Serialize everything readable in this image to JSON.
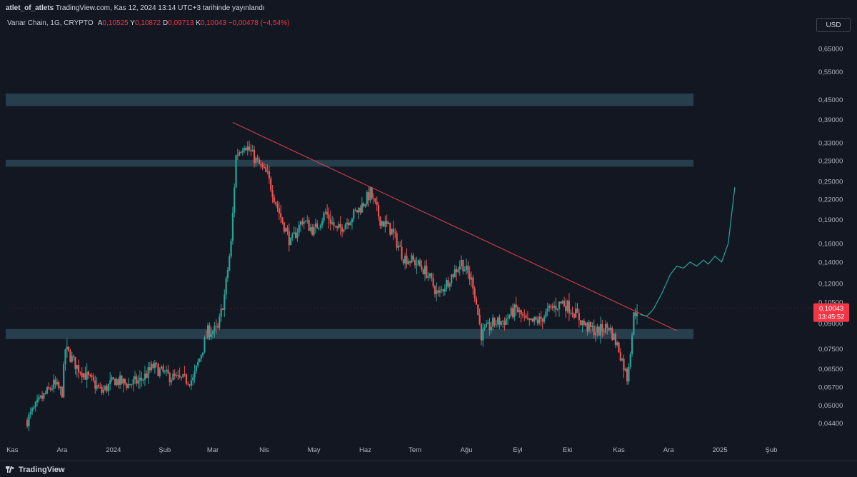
{
  "header": {
    "publisher": "atlet_of_atlets",
    "publish_line": "TradingView.com, Kas 12, 2024 13:14 UTC+3 tarihinde yayınlandı"
  },
  "legend": {
    "symbol": "Vanar Chain, 1G, CRYPTO",
    "open_label": "A",
    "open": "0,10525",
    "high_label": "Y",
    "high": "0,10872",
    "low_label": "D",
    "low": "0,09713",
    "close_label": "K",
    "close": "0,10043",
    "change": "−0,00478 (−4,54%)"
  },
  "currency_button": "USD",
  "footer": {
    "brand": "TradingView"
  },
  "colors": {
    "background": "#131722",
    "up": "#26a69a",
    "down": "#ef5350",
    "zone": "#2b4755",
    "trendline": "#e0434d",
    "projection": "#26a69a",
    "price_label": "#f23645"
  },
  "chart_data": {
    "type": "candlestick",
    "scale": "log",
    "ylim": [
      0.039,
      0.72
    ],
    "y_ticks": [
      {
        "value": 0.65,
        "label": "0,65000"
      },
      {
        "value": 0.55,
        "label": "0,55000"
      },
      {
        "value": 0.45,
        "label": "0,45000"
      },
      {
        "value": 0.39,
        "label": "0,39000"
      },
      {
        "value": 0.33,
        "label": "0,33000"
      },
      {
        "value": 0.29,
        "label": "0,29000"
      },
      {
        "value": 0.25,
        "label": "0,25000"
      },
      {
        "value": 0.22,
        "label": "0,22000"
      },
      {
        "value": 0.19,
        "label": "0,19000"
      },
      {
        "value": 0.16,
        "label": "0,16000"
      },
      {
        "value": 0.14,
        "label": "0,14000"
      },
      {
        "value": 0.12,
        "label": "0,12000"
      },
      {
        "value": 0.105,
        "label": "0,10500"
      },
      {
        "value": 0.09,
        "label": "0,09000"
      },
      {
        "value": 0.075,
        "label": "0,07500"
      },
      {
        "value": 0.065,
        "label": "0,06500"
      },
      {
        "value": 0.057,
        "label": "0,05700"
      },
      {
        "value": 0.05,
        "label": "0,05000"
      },
      {
        "value": 0.044,
        "label": "0,04400"
      }
    ],
    "x_ticks": [
      {
        "date": "2023-11-01",
        "label": "Kas"
      },
      {
        "date": "2023-12-01",
        "label": "Ara"
      },
      {
        "date": "2024-01-01",
        "label": "2024"
      },
      {
        "date": "2024-02-01",
        "label": "Şub"
      },
      {
        "date": "2024-03-01",
        "label": "Mar"
      },
      {
        "date": "2024-04-01",
        "label": "Nis"
      },
      {
        "date": "2024-05-01",
        "label": "May"
      },
      {
        "date": "2024-06-01",
        "label": "Haz"
      },
      {
        "date": "2024-07-01",
        "label": "Tem"
      },
      {
        "date": "2024-08-01",
        "label": "Ağu"
      },
      {
        "date": "2024-09-01",
        "label": "Eyl"
      },
      {
        "date": "2024-10-01",
        "label": "Eki"
      },
      {
        "date": "2024-11-01",
        "label": "Kas"
      },
      {
        "date": "2024-12-01",
        "label": "Ara"
      },
      {
        "date": "2025-01-01",
        "label": "2025"
      },
      {
        "date": "2025-02-01",
        "label": "Şub"
      }
    ],
    "xlim": [
      "2023-10-28",
      "2025-02-26"
    ],
    "series": [
      {
        "candles": [
          [
            "2023-11-10",
            0.045
          ],
          [
            "2023-11-18",
            0.052
          ],
          [
            "2023-11-26",
            0.058
          ],
          [
            "2023-12-01",
            0.055
          ],
          [
            "2023-12-03",
            0.075
          ],
          [
            "2023-12-10",
            0.066
          ],
          [
            "2023-12-18",
            0.06
          ],
          [
            "2023-12-25",
            0.055
          ],
          [
            "2024-01-02",
            0.06
          ],
          [
            "2024-01-10",
            0.058
          ],
          [
            "2024-01-18",
            0.06
          ],
          [
            "2024-01-25",
            0.066
          ],
          [
            "2024-02-02",
            0.062
          ],
          [
            "2024-02-10",
            0.06
          ],
          [
            "2024-02-18",
            0.06
          ],
          [
            "2024-02-22",
            0.07
          ],
          [
            "2024-02-27",
            0.085
          ],
          [
            "2024-03-04",
            0.086
          ],
          [
            "2024-03-08",
            0.11
          ],
          [
            "2024-03-12",
            0.16
          ],
          [
            "2024-03-15",
            0.3
          ],
          [
            "2024-03-20",
            0.33
          ],
          [
            "2024-03-27",
            0.29
          ],
          [
            "2024-04-03",
            0.26
          ],
          [
            "2024-04-10",
            0.2
          ],
          [
            "2024-04-17",
            0.16
          ],
          [
            "2024-04-24",
            0.19
          ],
          [
            "2024-05-01",
            0.175
          ],
          [
            "2024-05-08",
            0.2
          ],
          [
            "2024-05-15",
            0.175
          ],
          [
            "2024-05-22",
            0.19
          ],
          [
            "2024-05-30",
            0.21
          ],
          [
            "2024-06-04",
            0.23
          ],
          [
            "2024-06-10",
            0.19
          ],
          [
            "2024-06-17",
            0.175
          ],
          [
            "2024-06-24",
            0.145
          ],
          [
            "2024-07-01",
            0.14
          ],
          [
            "2024-07-08",
            0.13
          ],
          [
            "2024-07-15",
            0.11
          ],
          [
            "2024-07-22",
            0.125
          ],
          [
            "2024-07-29",
            0.14
          ],
          [
            "2024-08-05",
            0.12
          ],
          [
            "2024-08-10",
            0.083
          ],
          [
            "2024-08-17",
            0.09
          ],
          [
            "2024-08-24",
            0.092
          ],
          [
            "2024-08-31",
            0.1
          ],
          [
            "2024-09-07",
            0.09
          ],
          [
            "2024-09-14",
            0.092
          ],
          [
            "2024-09-21",
            0.1
          ],
          [
            "2024-09-28",
            0.105
          ],
          [
            "2024-10-05",
            0.098
          ],
          [
            "2024-10-12",
            0.088
          ],
          [
            "2024-10-19",
            0.085
          ],
          [
            "2024-10-26",
            0.088
          ],
          [
            "2024-11-01",
            0.075
          ],
          [
            "2024-11-06",
            0.061
          ],
          [
            "2024-11-08",
            0.075
          ],
          [
            "2024-11-10",
            0.095
          ],
          [
            "2024-11-12",
            0.1004
          ]
        ]
      }
    ],
    "zones": [
      {
        "low": 0.43,
        "high": 0.47
      },
      {
        "low": 0.278,
        "high": 0.292
      },
      {
        "low": 0.0805,
        "high": 0.0865
      }
    ],
    "trendline": {
      "from": [
        "2024-03-13",
        0.382
      ],
      "to": [
        "2024-12-06",
        0.0855
      ]
    },
    "projection": [
      [
        "2024-11-14",
        0.096
      ],
      [
        "2024-11-18",
        0.095
      ],
      [
        "2024-11-22",
        0.1
      ],
      [
        "2024-11-27",
        0.112
      ],
      [
        "2024-12-02",
        0.128
      ],
      [
        "2024-12-06",
        0.136
      ],
      [
        "2024-12-10",
        0.134
      ],
      [
        "2024-12-14",
        0.14
      ],
      [
        "2024-12-18",
        0.136
      ],
      [
        "2024-12-22",
        0.142
      ],
      [
        "2024-12-25",
        0.138
      ],
      [
        "2024-12-29",
        0.146
      ],
      [
        "2025-01-02",
        0.14
      ],
      [
        "2025-01-06",
        0.16
      ],
      [
        "2025-01-10",
        0.24
      ]
    ],
    "last_price": {
      "value": 0.10043,
      "label": "0,10043",
      "countdown": "13:45:52"
    }
  }
}
